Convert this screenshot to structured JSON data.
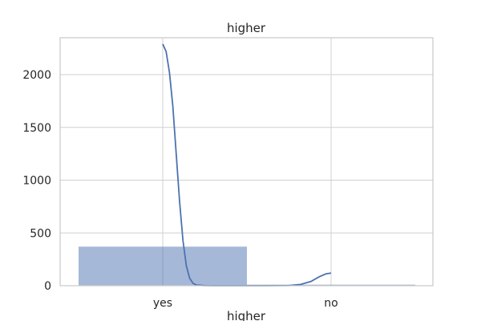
{
  "chart_data": {
    "type": "bar",
    "title": "higher",
    "xlabel": "higher",
    "ylabel": "",
    "categories": [
      "yes",
      "no"
    ],
    "values": [
      370,
      10
    ],
    "ylim": [
      0,
      2350
    ],
    "yticks": [
      0,
      500,
      1000,
      1500,
      2000
    ],
    "grid": true,
    "bar_color": "#4c72b0",
    "kde": {
      "color": "#4c72b0",
      "points": [
        {
          "x": 0.0,
          "y": 2290
        },
        {
          "x": 0.02,
          "y": 2220
        },
        {
          "x": 0.04,
          "y": 2020
        },
        {
          "x": 0.06,
          "y": 1700
        },
        {
          "x": 0.08,
          "y": 1250
        },
        {
          "x": 0.1,
          "y": 800
        },
        {
          "x": 0.12,
          "y": 430
        },
        {
          "x": 0.14,
          "y": 190
        },
        {
          "x": 0.16,
          "y": 70
        },
        {
          "x": 0.18,
          "y": 22
        },
        {
          "x": 0.2,
          "y": 6
        },
        {
          "x": 0.25,
          "y": 1
        },
        {
          "x": 0.3,
          "y": 0
        },
        {
          "x": 0.6,
          "y": 0
        },
        {
          "x": 0.75,
          "y": 2
        },
        {
          "x": 0.82,
          "y": 12
        },
        {
          "x": 0.88,
          "y": 40
        },
        {
          "x": 0.93,
          "y": 85
        },
        {
          "x": 0.97,
          "y": 112
        },
        {
          "x": 1.0,
          "y": 120
        }
      ]
    }
  }
}
